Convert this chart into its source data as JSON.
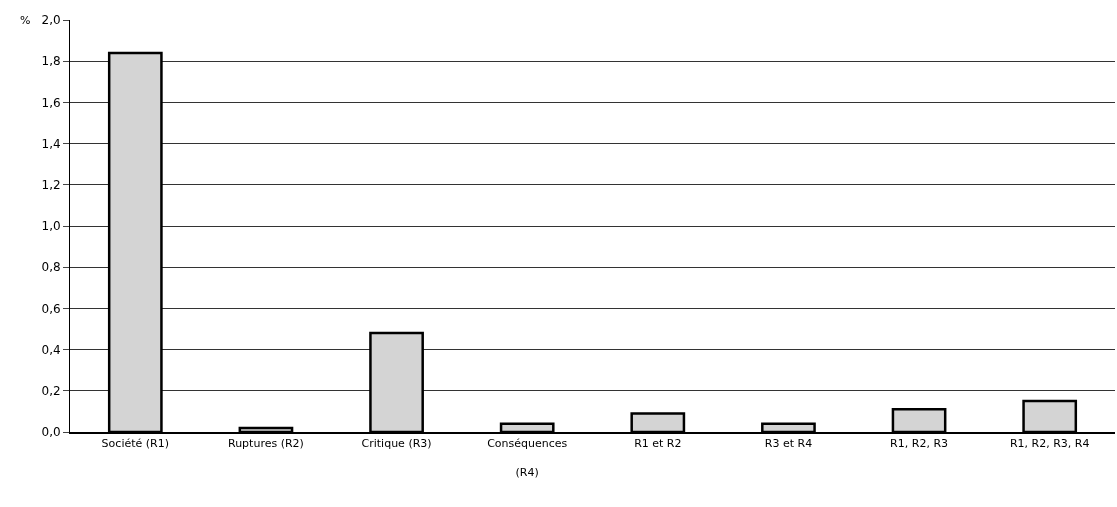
{
  "chart_data": {
    "type": "bar",
    "ylabel": "%",
    "categories": [
      "Société (R1)",
      "Ruptures (R2)",
      "Critique (R3)",
      "Conséquences (R4)",
      "R1 et R2",
      "R3 et R4",
      "R1, R2, R3",
      "R1, R2, R3, R4"
    ],
    "values": [
      1.84,
      0.02,
      0.48,
      0.04,
      0.09,
      0.04,
      0.11,
      0.15
    ],
    "color": "#d4d4d4",
    "ylim": [
      0,
      2.0
    ],
    "yticks": [
      {
        "value": 0,
        "label": "0,0"
      },
      {
        "value": 0.2,
        "label": "0,2"
      },
      {
        "value": 0.4,
        "label": "0,4"
      },
      {
        "value": 0.6,
        "label": "0,6"
      },
      {
        "value": 0.8,
        "label": "0,8"
      },
      {
        "value": 1.0,
        "label": "1,0"
      },
      {
        "value": 1.2,
        "label": "1,2"
      },
      {
        "value": 1.4,
        "label": "1,4"
      },
      {
        "value": 1.6,
        "label": "1,6"
      },
      {
        "value": 1.8,
        "label": "1,8"
      },
      {
        "value": 2.0,
        "label": "2,0"
      }
    ],
    "grid": "y",
    "legend": false
  }
}
